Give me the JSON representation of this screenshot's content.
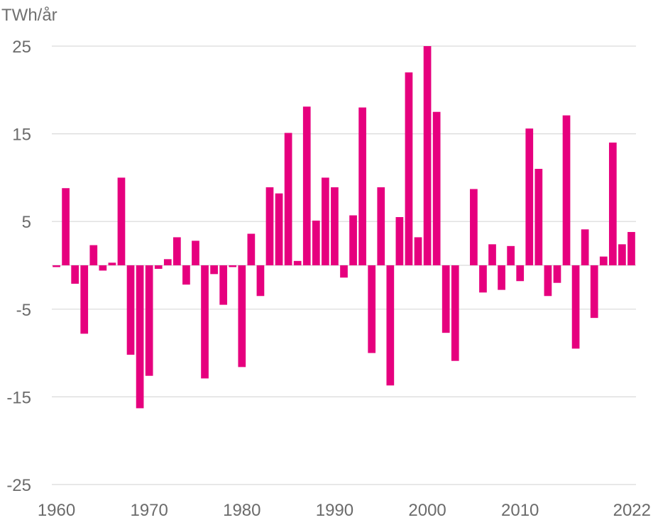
{
  "chart_data": {
    "type": "bar",
    "ylabel": "TWh/år",
    "ylim": [
      -25,
      25
    ],
    "yticks": [
      25,
      15,
      5,
      -5,
      -15,
      -25
    ],
    "xtick_labels": [
      "1960",
      "1970",
      "1980",
      "1990",
      "2000",
      "2010",
      "2022"
    ],
    "grid": true,
    "bar_color": "#e6007e",
    "categories": [
      1960,
      1961,
      1962,
      1963,
      1964,
      1965,
      1966,
      1967,
      1968,
      1969,
      1970,
      1971,
      1972,
      1973,
      1974,
      1975,
      1976,
      1977,
      1978,
      1979,
      1980,
      1981,
      1982,
      1983,
      1984,
      1985,
      1986,
      1987,
      1988,
      1989,
      1990,
      1991,
      1992,
      1993,
      1994,
      1995,
      1996,
      1997,
      1998,
      1999,
      2000,
      2001,
      2002,
      2003,
      2004,
      2005,
      2006,
      2007,
      2008,
      2009,
      2010,
      2011,
      2012,
      2013,
      2014,
      2015,
      2016,
      2017,
      2018,
      2019,
      2020,
      2021,
      2022
    ],
    "values": [
      -0.2,
      8.8,
      -2.1,
      -7.8,
      2.3,
      -0.6,
      0.3,
      10.0,
      -10.2,
      -16.3,
      -12.6,
      -0.4,
      0.7,
      3.2,
      -2.2,
      2.8,
      -12.9,
      -1.0,
      -4.5,
      -0.2,
      -11.6,
      3.6,
      -3.5,
      8.9,
      8.2,
      15.1,
      0.5,
      18.1,
      5.1,
      10.0,
      8.9,
      -1.4,
      5.7,
      18.0,
      -10.0,
      8.9,
      -13.7,
      5.5,
      22.0,
      3.2,
      25.0,
      17.5,
      -7.7,
      -10.9,
      0.0,
      8.7,
      -3.1,
      2.4,
      -2.8,
      2.2,
      -1.8,
      15.6,
      11.0,
      -3.5,
      -2.0,
      17.1,
      -9.5,
      4.1,
      -6.0,
      1.0,
      14.0,
      2.4,
      3.8
    ]
  }
}
